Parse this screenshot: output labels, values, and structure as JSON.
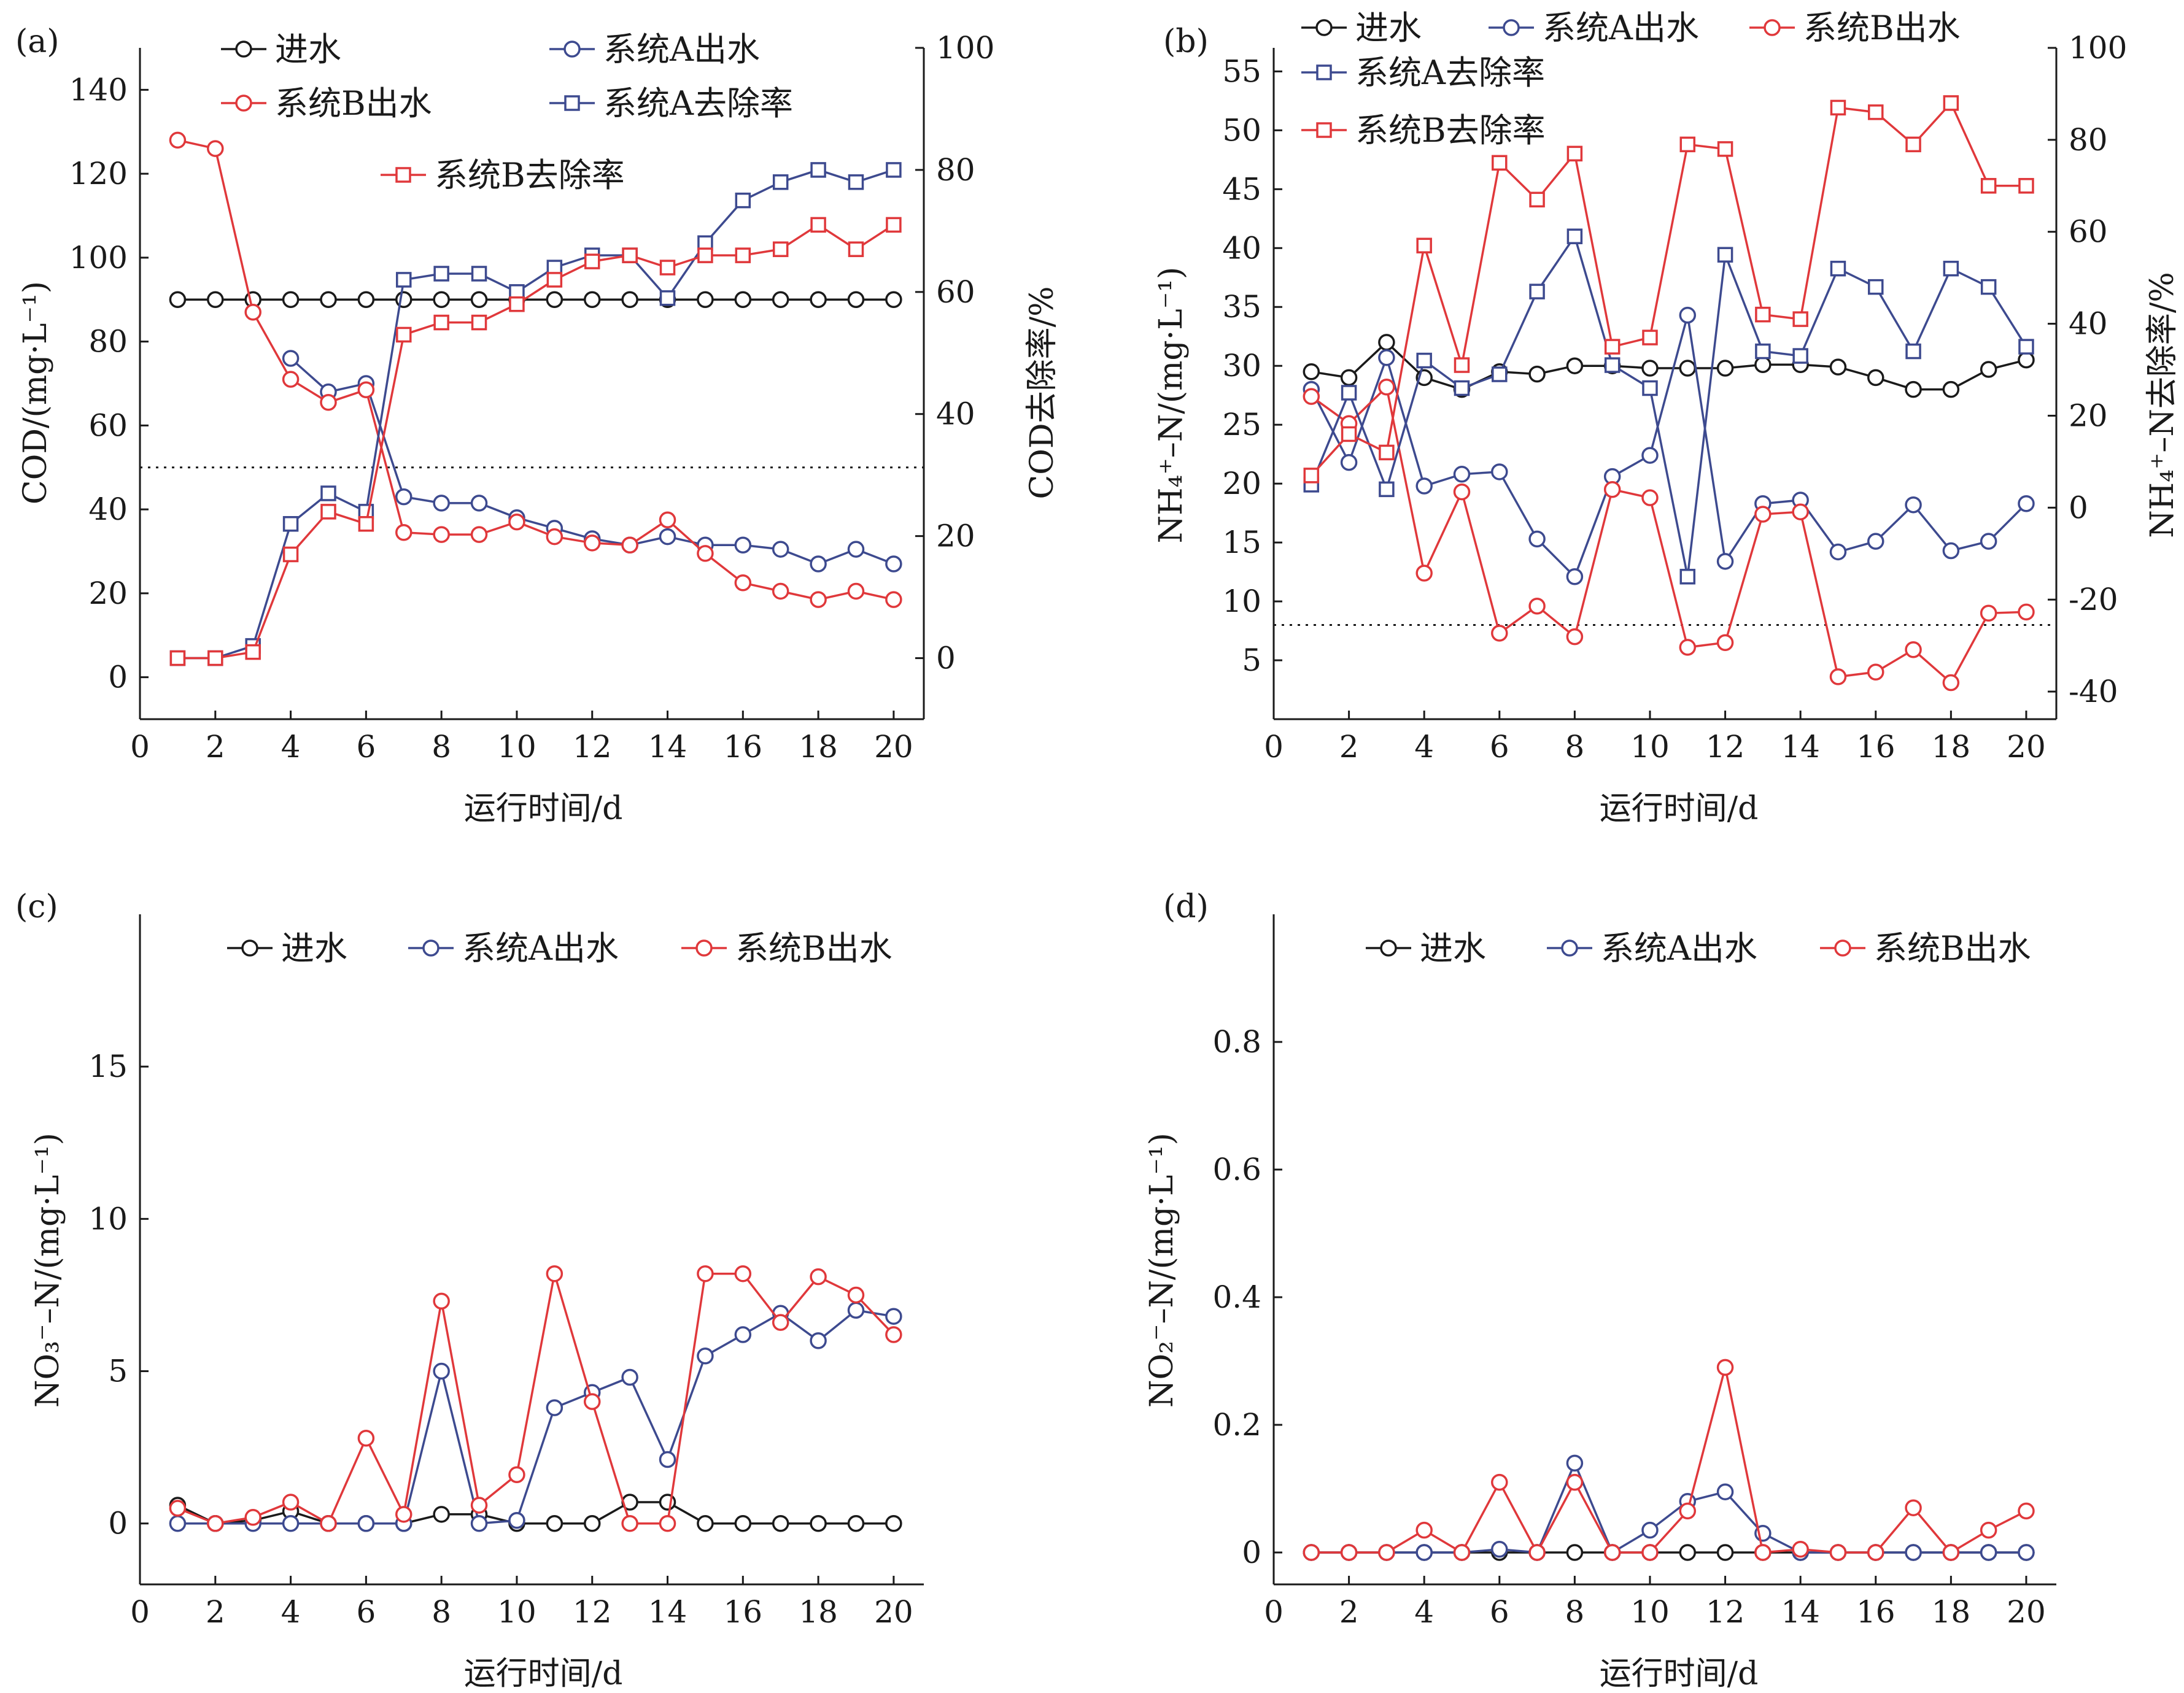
{
  "chart_data": [
    {
      "panel": "(a)",
      "type": "line",
      "xlabel": "运行时间/d",
      "ylabel": "COD/(mg·L⁻¹)",
      "y2label": "COD去除率/%",
      "xlim": [
        0,
        20.8
      ],
      "ylim": [
        -10,
        150
      ],
      "y2lim": [
        -10,
        100
      ],
      "xticks": [
        0,
        2,
        4,
        6,
        8,
        10,
        12,
        14,
        16,
        18,
        20
      ],
      "yticks": [
        0,
        20,
        40,
        60,
        80,
        100,
        120,
        140
      ],
      "y2ticks": [
        0,
        20,
        40,
        60,
        80,
        100
      ],
      "reference_line": 50,
      "x": [
        1,
        2,
        3,
        4,
        5,
        6,
        7,
        8,
        9,
        10,
        11,
        12,
        13,
        14,
        15,
        16,
        17,
        18,
        19,
        20
      ],
      "series": [
        {
          "name": "进水",
          "color": "#1a1a1a",
          "marker": "circle",
          "axis": "left",
          "values": [
            90,
            90,
            90,
            90,
            90,
            90,
            90,
            90,
            90,
            90,
            90,
            90,
            90,
            90,
            90,
            90,
            90,
            90,
            90,
            90
          ]
        },
        {
          "name": "系统A出水",
          "color": "#3d4a8f",
          "marker": "circle",
          "axis": "left",
          "values": [
            null,
            null,
            null,
            76,
            68,
            70,
            43,
            41.5,
            41.5,
            38,
            35.5,
            33,
            31.5,
            33.5,
            31.5,
            31.5,
            30.5,
            27,
            30.5,
            27
          ]
        },
        {
          "name": "系统B出水",
          "color": "#e0383b",
          "marker": "circle",
          "axis": "left",
          "values": [
            128,
            126,
            87,
            71,
            65.5,
            68.5,
            34.5,
            34,
            34,
            37,
            33.5,
            32,
            31.5,
            37.5,
            29.5,
            22.5,
            20.5,
            18.5,
            20.5,
            18.5
          ]
        },
        {
          "name": "系统A去除率",
          "color": "#3d4a8f",
          "marker": "square",
          "axis": "right",
          "values": [
            0,
            0,
            2,
            22,
            27,
            24,
            62,
            63,
            63,
            60,
            64,
            66,
            66,
            59,
            68,
            75,
            78,
            80,
            78,
            80
          ]
        },
        {
          "name": "系统B去除率",
          "color": "#e0383b",
          "marker": "square",
          "axis": "right",
          "values": [
            0,
            0,
            1,
            17,
            24,
            22,
            53,
            55,
            55,
            58,
            62,
            65,
            66,
            64,
            66,
            66,
            67,
            71,
            67,
            71
          ]
        }
      ],
      "legend": {
        "placement": "top",
        "labels": [
          "进水",
          "系统A出水",
          "系统B出水",
          "系统A去除率",
          "系统B去除率"
        ]
      }
    },
    {
      "panel": "(b)",
      "type": "line",
      "xlabel": "运行时间/d",
      "ylabel": "NH₄⁺–N/(mg·L⁻¹)",
      "y2label": "NH₄⁺–N去除率/%",
      "xlim": [
        0,
        20.8
      ],
      "ylim": [
        0,
        57
      ],
      "y2lim": [
        -46,
        100
      ],
      "xticks": [
        0,
        2,
        4,
        6,
        8,
        10,
        12,
        14,
        16,
        18,
        20
      ],
      "yticks": [
        5,
        10,
        15,
        20,
        25,
        30,
        35,
        40,
        45,
        50,
        55
      ],
      "y2ticks": [
        -40,
        -20,
        0,
        20,
        40,
        60,
        80,
        100
      ],
      "reference_line": 8,
      "x": [
        1,
        2,
        3,
        4,
        5,
        6,
        7,
        8,
        9,
        10,
        11,
        12,
        13,
        14,
        15,
        16,
        17,
        18,
        19,
        20
      ],
      "series": [
        {
          "name": "进水",
          "color": "#1a1a1a",
          "marker": "circle",
          "axis": "left",
          "values": [
            29.5,
            29,
            32,
            29,
            28,
            29.5,
            29.3,
            30,
            30,
            29.8,
            29.8,
            29.8,
            30.1,
            30.1,
            29.9,
            29,
            28,
            28,
            29.7,
            30.5
          ]
        },
        {
          "name": "系统A出水",
          "color": "#3d4a8f",
          "marker": "circle",
          "axis": "left",
          "values": [
            28,
            21.8,
            30.7,
            19.8,
            20.8,
            21,
            15.3,
            12.1,
            20.6,
            22.4,
            34.3,
            13.4,
            18.3,
            18.6,
            14.2,
            15.1,
            18.2,
            14.3,
            15.1,
            18.3
          ]
        },
        {
          "name": "系统B出水",
          "color": "#e0383b",
          "marker": "circle",
          "axis": "left",
          "values": [
            27.4,
            25.1,
            28.2,
            12.4,
            19.3,
            7.3,
            9.6,
            7,
            19.5,
            18.8,
            6.1,
            6.5,
            17.4,
            17.6,
            3.6,
            4,
            5.9,
            3.1,
            9,
            9.1
          ]
        },
        {
          "name": "系统A去除率",
          "color": "#3d4a8f",
          "marker": "square",
          "axis": "right",
          "values": [
            5,
            25,
            4,
            32,
            26,
            29,
            47,
            59,
            31,
            26,
            -15,
            55,
            34,
            33,
            52,
            48,
            34,
            52,
            48,
            35
          ]
        },
        {
          "name": "系统B去除率",
          "color": "#e0383b",
          "marker": "square",
          "axis": "right",
          "values": [
            7,
            16,
            12,
            57,
            31,
            75,
            67,
            77,
            35,
            37,
            79,
            78,
            42,
            41,
            87,
            86,
            79,
            88,
            70,
            70
          ]
        }
      ],
      "legend": {
        "placement": "top",
        "labels": [
          "进水",
          "系统A出水",
          "系统B出水",
          "系统A去除率",
          "系统B去除率"
        ]
      }
    },
    {
      "panel": "(c)",
      "type": "line",
      "xlabel": "运行时间/d",
      "ylabel": "NO₃⁻–N/(mg·L⁻¹)",
      "xlim": [
        0,
        20.8
      ],
      "ylim": [
        -2,
        20
      ],
      "xticks": [
        0,
        2,
        4,
        6,
        8,
        10,
        12,
        14,
        16,
        18,
        20
      ],
      "yticks": [
        0,
        5,
        10,
        15
      ],
      "x": [
        1,
        2,
        3,
        4,
        5,
        6,
        7,
        8,
        9,
        10,
        11,
        12,
        13,
        14,
        15,
        16,
        17,
        18,
        19,
        20
      ],
      "series": [
        {
          "name": "进水",
          "color": "#1a1a1a",
          "marker": "circle",
          "values": [
            0.6,
            0,
            0.1,
            0.4,
            0,
            0,
            0,
            0.3,
            0.3,
            0,
            0,
            0,
            0.7,
            0.7,
            0,
            0,
            0,
            0,
            0,
            0
          ]
        },
        {
          "name": "系统A出水",
          "color": "#3d4a8f",
          "marker": "circle",
          "values": [
            0,
            0,
            0,
            0,
            0,
            0,
            0,
            5,
            0,
            0.1,
            3.8,
            4.3,
            4.8,
            2.1,
            5.5,
            6.2,
            6.9,
            6,
            7,
            6.8
          ]
        },
        {
          "name": "系统B出水",
          "color": "#e0383b",
          "marker": "circle",
          "values": [
            0.5,
            0,
            0.2,
            0.7,
            0,
            2.8,
            0.3,
            7.3,
            0.6,
            1.6,
            8.2,
            4,
            0,
            0,
            8.2,
            8.2,
            6.6,
            8.1,
            7.5,
            6.2
          ]
        }
      ],
      "legend": {
        "placement": "top",
        "labels": [
          "进水",
          "系统A出水",
          "系统B出水"
        ]
      }
    },
    {
      "panel": "(d)",
      "type": "line",
      "xlabel": "运行时间/d",
      "ylabel": "NO₂⁻–N/(mg·L⁻¹)",
      "xlim": [
        0,
        20.8
      ],
      "ylim": [
        -0.05,
        1.0
      ],
      "xticks": [
        0,
        2,
        4,
        6,
        8,
        10,
        12,
        14,
        16,
        18,
        20
      ],
      "yticks": [
        0,
        0.2,
        0.4,
        0.6,
        0.8
      ],
      "x": [
        1,
        2,
        3,
        4,
        5,
        6,
        7,
        8,
        9,
        10,
        11,
        12,
        13,
        14,
        15,
        16,
        17,
        18,
        19,
        20
      ],
      "series": [
        {
          "name": "进水",
          "color": "#1a1a1a",
          "marker": "circle",
          "values": [
            0,
            0,
            0,
            0,
            0,
            0,
            0,
            0,
            0,
            0,
            0,
            0,
            0,
            0,
            0,
            0,
            0,
            0,
            0,
            0
          ]
        },
        {
          "name": "系统A出水",
          "color": "#3d4a8f",
          "marker": "circle",
          "values": [
            0,
            0,
            0,
            0,
            0,
            0.005,
            0,
            0.14,
            0,
            0.035,
            0.08,
            0.095,
            0.03,
            0,
            0,
            0,
            0,
            0,
            0,
            0
          ]
        },
        {
          "name": "系统B出水",
          "color": "#e0383b",
          "marker": "circle",
          "values": [
            0,
            0,
            0,
            0.035,
            0,
            0.11,
            0,
            0.11,
            0,
            0,
            0.065,
            0.29,
            0,
            0.005,
            0,
            0,
            0.07,
            0,
            0.035,
            0.065
          ]
        }
      ],
      "legend": {
        "placement": "top",
        "labels": [
          "进水",
          "系统A出水",
          "系统B出水"
        ]
      }
    }
  ]
}
